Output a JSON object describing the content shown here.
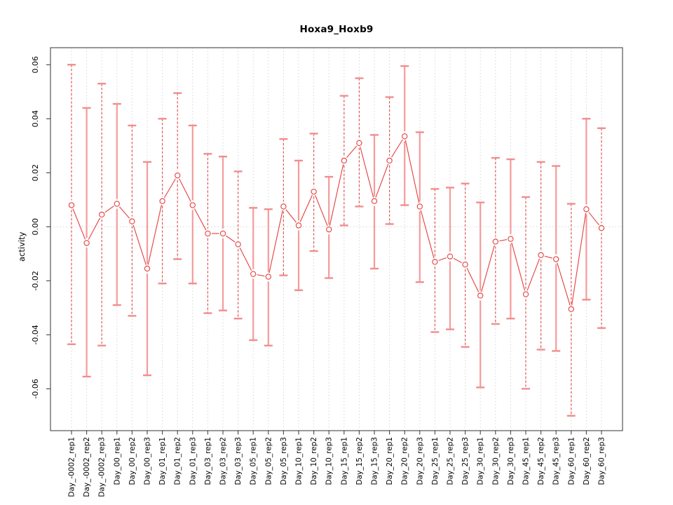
{
  "title": "Hoxa9_Hoxb9",
  "axis": {
    "y_label": "activity",
    "x_label": ""
  },
  "colors": {
    "point_line_red": "#e64545",
    "solid_bar": "#f59b9b",
    "dashed_bar": "#e25555",
    "cap": "#f28d8d",
    "grid": "#d6d6d6",
    "box_border": "#555555",
    "tick": "#444444",
    "background": "#ffffff"
  },
  "chart_data": {
    "type": "line",
    "subtype": "error-bar-series",
    "title": "Hoxa9_Hoxb9",
    "xlabel": "",
    "ylabel": "activity",
    "ylim": [
      -0.0755,
      0.0663
    ],
    "yticks": [
      0.06,
      0.04,
      0.02,
      0.0,
      -0.02,
      -0.04,
      -0.06
    ],
    "ytick_labels": [
      "0.06",
      "0.04",
      "0.02",
      "0.00",
      "-0.02",
      "-0.04",
      "-0.06"
    ],
    "grid": "dotted vertical gridline per category; dotted horizontal line at y=0",
    "legend_position": "none",
    "categories": [
      "Day_-0002_rep1",
      "Day_-0002_rep2",
      "Day_-0002_rep3",
      "Day_00_rep1",
      "Day_00_rep2",
      "Day_00_rep3",
      "Day_01_rep1",
      "Day_01_rep2",
      "Day_01_rep3",
      "Day_03_rep1",
      "Day_03_rep2",
      "Day_03_rep3",
      "Day_05_rep1",
      "Day_05_rep2",
      "Day_05_rep3",
      "Day_10_rep1",
      "Day_10_rep2",
      "Day_10_rep3",
      "Day_15_rep1",
      "Day_15_rep2",
      "Day_15_rep3",
      "Day_20_rep1",
      "Day_20_rep2",
      "Day_20_rep3",
      "Day_25_rep1",
      "Day_25_rep2",
      "Day_25_rep3",
      "Day_30_rep1",
      "Day_30_rep2",
      "Day_30_rep3",
      "Day_45_rep1",
      "Day_45_rep2",
      "Day_45_rep3",
      "Day_60_rep1",
      "Day_60_rep2",
      "Day_60_rep3"
    ],
    "series": [
      {
        "name": "activity",
        "centers": [
          0.008,
          -0.006,
          0.0045,
          0.0085,
          0.002,
          -0.0155,
          0.0095,
          0.019,
          0.008,
          -0.0025,
          -0.0025,
          -0.0065,
          -0.0175,
          -0.0185,
          0.0075,
          0.0005,
          0.013,
          -0.001,
          0.0245,
          0.031,
          0.0095,
          0.0245,
          0.0335,
          0.0075,
          -0.013,
          -0.011,
          -0.014,
          -0.0255,
          -0.0055,
          -0.0045,
          -0.025,
          -0.0105,
          -0.012,
          -0.0305,
          0.0065,
          -0.0005
        ],
        "lower": [
          -0.0435,
          -0.0555,
          -0.044,
          -0.029,
          -0.033,
          -0.055,
          -0.021,
          -0.012,
          -0.021,
          -0.032,
          -0.031,
          -0.034,
          -0.042,
          -0.044,
          -0.018,
          -0.0235,
          -0.009,
          -0.019,
          0.0005,
          0.0075,
          -0.0155,
          0.001,
          0.008,
          -0.0205,
          -0.039,
          -0.038,
          -0.0445,
          -0.0595,
          -0.036,
          -0.034,
          -0.06,
          -0.0455,
          -0.046,
          -0.07,
          -0.027,
          -0.0375
        ],
        "upper": [
          0.06,
          0.044,
          0.053,
          0.0455,
          0.0375,
          0.024,
          0.04,
          0.0495,
          0.0375,
          0.027,
          0.026,
          0.0205,
          0.007,
          0.0065,
          0.0325,
          0.0245,
          0.0345,
          0.0185,
          0.0485,
          0.055,
          0.034,
          0.048,
          0.0595,
          0.035,
          0.014,
          0.0145,
          0.016,
          0.009,
          0.0255,
          0.025,
          0.011,
          0.024,
          0.0225,
          0.0085,
          0.04,
          0.0365
        ]
      }
    ],
    "bar_styles": [
      "dashed",
      "solid",
      "dashed",
      "solid",
      "dashed",
      "solid",
      "dashed",
      "dashed",
      "solid",
      "dashed",
      "solid",
      "dashed",
      "solid",
      "solid",
      "dashed",
      "solid",
      "dashed",
      "solid",
      "dashed",
      "dashed",
      "solid",
      "dashed",
      "solid",
      "solid",
      "dashed",
      "solid",
      "dashed",
      "solid",
      "dashed",
      "solid",
      "dashed",
      "dashed",
      "solid",
      "dashed",
      "solid",
      "dashed"
    ],
    "point_marker": "open-circle"
  }
}
